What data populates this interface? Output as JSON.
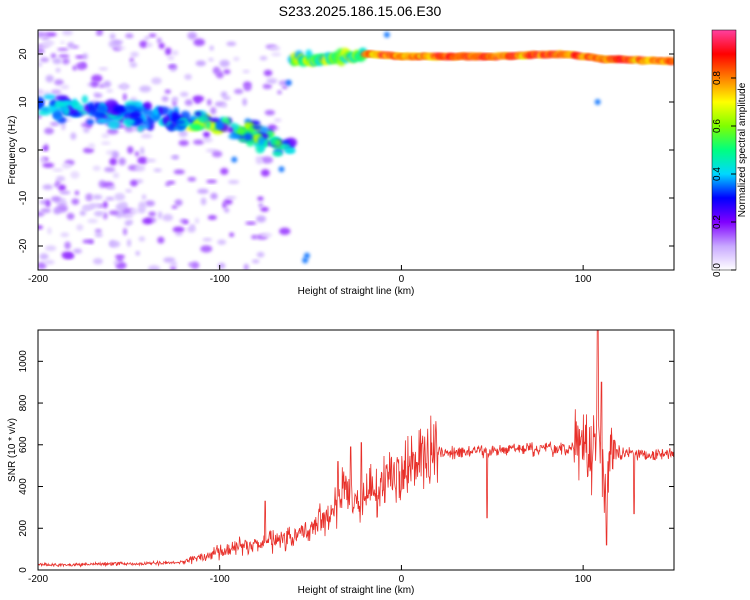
{
  "title": "S233.2025.186.15.06.E30",
  "chart_data": [
    {
      "type": "heatmap",
      "xlabel": "Height of straight line (km)",
      "ylabel": "Frequency (Hz)",
      "xlim": [
        -200,
        150
      ],
      "ylim": [
        -25,
        25
      ],
      "xticks": [
        -200,
        -100,
        0,
        100
      ],
      "yticks": [
        -20,
        -10,
        0,
        10,
        20
      ],
      "colorbar": {
        "label": "Normalized spectral amplitude",
        "range": [
          0,
          1
        ],
        "ticks": [
          "0.0",
          "0.2",
          "0.4",
          "0.6",
          "0.8"
        ],
        "colors": [
          "#ffffff",
          "#c8a8ff",
          "#8000ff",
          "#0000ff",
          "#00d8ff",
          "#00ff80",
          "#80ff00",
          "#ffff00",
          "#ff8000",
          "#ff0000",
          "#ff40a0"
        ]
      },
      "features": [
        {
          "name": "scattered background",
          "x": [
            -200,
            -60
          ],
          "freq": [
            -25,
            25
          ],
          "amplitude": 0.15
        },
        {
          "name": "descending band",
          "points": [
            [
              -200,
              9
            ],
            [
              -160,
              8
            ],
            [
              -120,
              6
            ],
            [
              -100,
              5
            ],
            [
              -80,
              3
            ],
            [
              -62,
              1
            ]
          ],
          "amplitude": 0.35
        },
        {
          "name": "main line",
          "points": [
            [
              -60,
              19
            ],
            [
              -40,
              19
            ],
            [
              -20,
              20
            ],
            [
              0,
              19.5
            ],
            [
              50,
              19.5
            ],
            [
              90,
              20
            ],
            [
              110,
              19
            ],
            [
              150,
              18.5
            ]
          ],
          "amplitude": 0.9
        }
      ],
      "grid": false
    },
    {
      "type": "line",
      "xlabel": "Height of straight line (km)",
      "ylabel": "SNR (10 * v/v)",
      "xlim": [
        -200,
        150
      ],
      "ylim": [
        0,
        1150
      ],
      "xticks": [
        -200,
        -100,
        0,
        100
      ],
      "yticks": [
        0,
        200,
        400,
        600,
        800,
        1000
      ],
      "color": "#e8302a",
      "series": [
        {
          "x": [
            -200,
            -180,
            -160,
            -140,
            -120,
            -110,
            -100,
            -90,
            -80,
            -70,
            -60,
            -50,
            -40,
            -35,
            -30,
            -25,
            -20,
            -15,
            -10,
            -5,
            0,
            10,
            20,
            30,
            40,
            50,
            60,
            70,
            80,
            90,
            95,
            100,
            105,
            108,
            110,
            112,
            115,
            120,
            130,
            140,
            150
          ],
          "values": [
            25,
            25,
            30,
            30,
            40,
            60,
            90,
            110,
            120,
            140,
            150,
            200,
            250,
            350,
            420,
            300,
            350,
            400,
            400,
            460,
            490,
            540,
            560,
            560,
            570,
            570,
            580,
            580,
            580,
            570,
            600,
            620,
            520,
            700,
            600,
            300,
            550,
            560,
            560,
            550,
            560
          ]
        }
      ],
      "spikes": [
        [
          -75,
          330
        ],
        [
          -35,
          520
        ],
        [
          -28,
          590
        ],
        [
          -22,
          610
        ],
        [
          47,
          250
        ],
        [
          108,
          1150
        ],
        [
          110,
          900
        ],
        [
          113,
          120
        ],
        [
          128,
          270
        ]
      ],
      "grid": false
    }
  ]
}
